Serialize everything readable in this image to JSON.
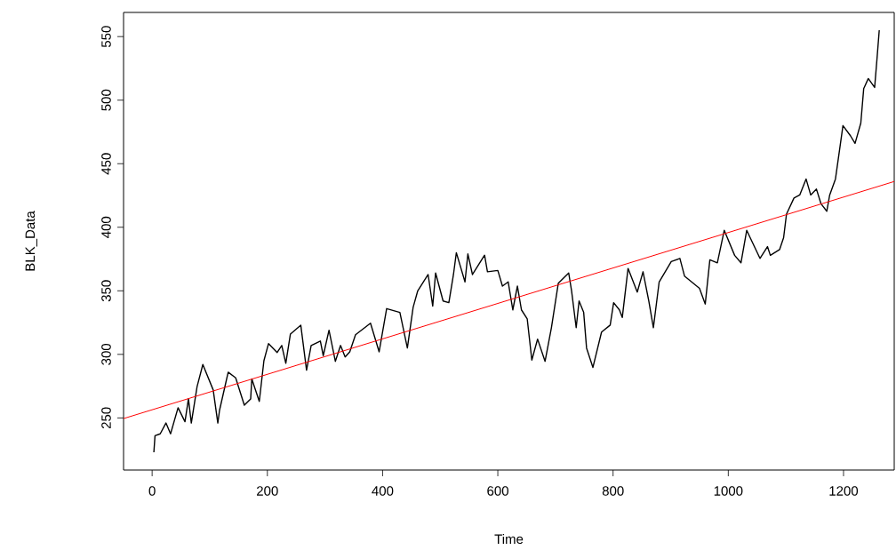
{
  "chart_data": {
    "type": "line",
    "xlabel": "Time",
    "ylabel": "BLK_Data",
    "xlim": [
      -49.6,
      1288
    ],
    "ylim": [
      209,
      569
    ],
    "xticks": [
      0,
      200,
      400,
      600,
      800,
      1000,
      1200
    ],
    "yticks": [
      250,
      300,
      350,
      400,
      450,
      500,
      550
    ],
    "grid": false,
    "marker": "none",
    "line_style": "solid",
    "series": [
      {
        "color": "#000000",
        "x": [
          3,
          5,
          14,
          24,
          32,
          45,
          57,
          63,
          68,
          78,
          88,
          106,
          114,
          117,
          132,
          145,
          160,
          171,
          173,
          186,
          194,
          202,
          217,
          225,
          232,
          240,
          258,
          268,
          276,
          292,
          297,
          307,
          318,
          327,
          335,
          343,
          353,
          379,
          394,
          407,
          430,
          443,
          453,
          461,
          479,
          487,
          492,
          505,
          515,
          523,
          528,
          543,
          548,
          556,
          577,
          582,
          600,
          608,
          618,
          626,
          634,
          641,
          651,
          659,
          669,
          682,
          693,
          705,
          723,
          728,
          736,
          741,
          749,
          754,
          765,
          780,
          795,
          801,
          811,
          816,
          826,
          842,
          852,
          862,
          870,
          880,
          901,
          916,
          924,
          950,
          960,
          968,
          981,
          993,
          1011,
          1022,
          1032,
          1042,
          1055,
          1068,
          1073,
          1089,
          1096,
          1101,
          1114,
          1124,
          1135,
          1143,
          1153,
          1161,
          1171,
          1176,
          1186,
          1194,
          1199,
          1212,
          1220,
          1230,
          1235,
          1243,
          1254,
          1258,
          1262
        ],
        "values": [
          223,
          236,
          237.5,
          246,
          237.5,
          258,
          247,
          265,
          246,
          274.6,
          292,
          272,
          246,
          256,
          286,
          281.5,
          260,
          265,
          280.6,
          263,
          295,
          308.5,
          301.5,
          307,
          293,
          316,
          323,
          287.6,
          307,
          310.5,
          299,
          319,
          294.5,
          307,
          298,
          302,
          315.4,
          324.5,
          302,
          336,
          333,
          305,
          337,
          350,
          362.8,
          338,
          364,
          342,
          340.7,
          362.8,
          380,
          357,
          379,
          362.8,
          378,
          365,
          366,
          353.7,
          357,
          335,
          353.7,
          335,
          328,
          295.5,
          312,
          294.5,
          321,
          356,
          364,
          350,
          321,
          342,
          333,
          305,
          289.7,
          317.5,
          323,
          340.7,
          335,
          329,
          367.6,
          349,
          365,
          342,
          321,
          357,
          373,
          375.5,
          361.6,
          352,
          339.6,
          374.4,
          372,
          397.6,
          377.9,
          372,
          397.6,
          388,
          375.5,
          384.8,
          377.9,
          382.4,
          391.8,
          410.3,
          423,
          425.4,
          438,
          425.4,
          430,
          418.4,
          412.6,
          425.4,
          438,
          463.7,
          480,
          472,
          466,
          482,
          509,
          517,
          510,
          532,
          555
        ]
      },
      {
        "color": "#ff0000",
        "x": [
          -49.6,
          1288
        ],
        "values": [
          249.5,
          436
        ]
      }
    ]
  }
}
